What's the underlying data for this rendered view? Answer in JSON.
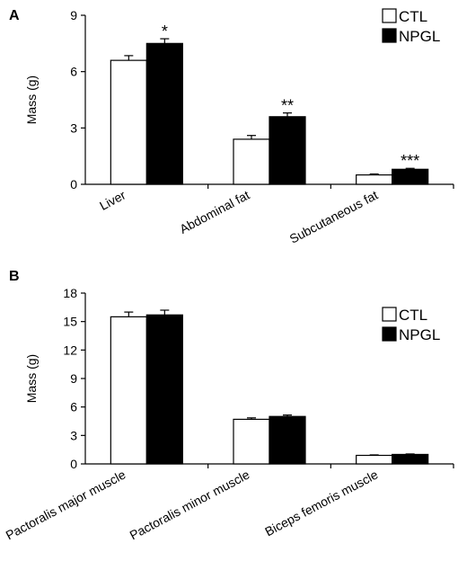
{
  "chart_data": [
    {
      "type": "bar",
      "panel_label": "A",
      "ylabel": "Mass (g)",
      "ylim": [
        0,
        9
      ],
      "yticks": [
        0,
        3,
        6,
        9
      ],
      "categories": [
        "Liver",
        "Abdominal fat",
        "Subcutaneous fat"
      ],
      "series": [
        {
          "name": "CTL",
          "color": "#ffffff",
          "values": [
            6.6,
            2.4,
            0.5
          ],
          "errors": [
            0.25,
            0.2,
            0.05
          ]
        },
        {
          "name": "NPGL",
          "color": "#000000",
          "values": [
            7.5,
            3.6,
            0.8
          ],
          "errors": [
            0.25,
            0.2,
            0.05
          ]
        }
      ],
      "significance": [
        "*",
        "**",
        "***"
      ],
      "legend_position": "top-right"
    },
    {
      "type": "bar",
      "panel_label": "B",
      "ylabel": "Mass (g)",
      "ylim": [
        0,
        18
      ],
      "yticks": [
        0,
        3,
        6,
        9,
        12,
        15,
        18
      ],
      "categories": [
        "Pactoralis major muscle",
        "Pactoralis minor muscle",
        "Biceps femoris muscle"
      ],
      "series": [
        {
          "name": "CTL",
          "color": "#ffffff",
          "values": [
            15.5,
            4.7,
            0.9
          ],
          "errors": [
            0.5,
            0.15,
            0.05
          ]
        },
        {
          "name": "NPGL",
          "color": "#000000",
          "values": [
            15.7,
            5.0,
            1.0
          ],
          "errors": [
            0.5,
            0.15,
            0.05
          ]
        }
      ],
      "significance": [
        "",
        "",
        ""
      ],
      "legend_position": "top-right"
    }
  ]
}
